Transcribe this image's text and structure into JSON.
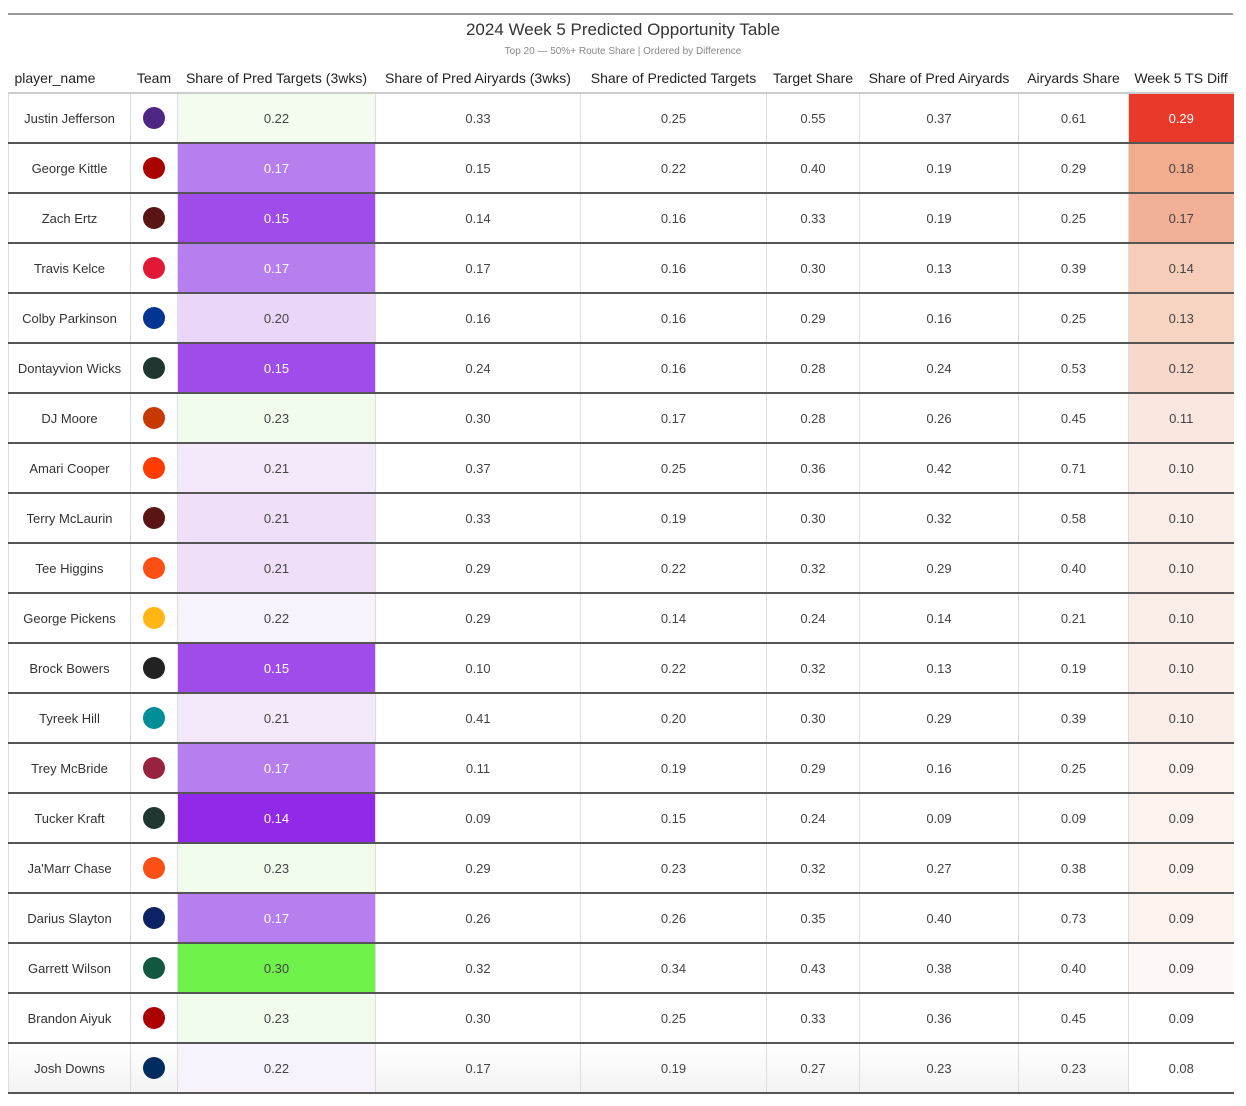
{
  "title": "2024 Week 5 Predicted Opportunity Table",
  "subtitle": "Top 20 — 50%+ Route Share | Ordered by Difference",
  "chart_data": {
    "type": "table",
    "columns": [
      "player_name",
      "Team",
      "Share of Pred Targets (3wks)",
      "Share of Pred Airyards (3wks)",
      "Share of Predicted Targets",
      "Target Share",
      "Share of Pred Airyards",
      "Airyards Share",
      "Week 5 TS Diff"
    ],
    "rows": [
      {
        "player": "Justin Jefferson",
        "team_icon": "vikings-logo",
        "team_color": "#4f2683",
        "v": [
          "0.22",
          "0.33",
          "0.25",
          "0.55",
          "0.37",
          "0.61",
          "0.29"
        ],
        "c3": "#f3fcef",
        "cd": "#e8392a",
        "d_dark": true
      },
      {
        "player": "George Kittle",
        "team_icon": "49ers-logo",
        "team_color": "#aa0000",
        "v": [
          "0.17",
          "0.15",
          "0.22",
          "0.40",
          "0.19",
          "0.29",
          "0.18"
        ],
        "c3": "#b77ef0",
        "cd": "#f1ad8e",
        "c3_dark": true
      },
      {
        "player": "Zach Ertz",
        "team_icon": "commanders-logo",
        "team_color": "#5a1414",
        "v": [
          "0.15",
          "0.14",
          "0.16",
          "0.33",
          "0.19",
          "0.25",
          "0.17"
        ],
        "c3": "#a04ceb",
        "cd": "#f2b096",
        "c3_dark": true
      },
      {
        "player": "Travis Kelce",
        "team_icon": "chiefs-logo",
        "team_color": "#e31837",
        "v": [
          "0.17",
          "0.17",
          "0.16",
          "0.30",
          "0.13",
          "0.39",
          "0.14"
        ],
        "c3": "#b77ef0",
        "cd": "#f6cdb9",
        "c3_dark": true
      },
      {
        "player": "Colby Parkinson",
        "team_icon": "rams-logo",
        "team_color": "#003594",
        "v": [
          "0.20",
          "0.16",
          "0.16",
          "0.29",
          "0.16",
          "0.25",
          "0.13"
        ],
        "c3": "#ead6f8",
        "cd": "#f7d3c2"
      },
      {
        "player": "Dontayvion Wicks",
        "team_icon": "packers-logo",
        "team_color": "#203731",
        "v": [
          "0.15",
          "0.24",
          "0.16",
          "0.28",
          "0.24",
          "0.53",
          "0.12"
        ],
        "c3": "#a04ceb",
        "cd": "#f8d8ca",
        "c3_dark": true
      },
      {
        "player": "DJ Moore",
        "team_icon": "bears-logo",
        "team_color": "#c83803",
        "v": [
          "0.23",
          "0.30",
          "0.17",
          "0.28",
          "0.26",
          "0.45",
          "0.11"
        ],
        "c3": "#f2fced",
        "cd": "#fae7df"
      },
      {
        "player": "Amari Cooper",
        "team_icon": "browns-logo",
        "team_color": "#ff3c00",
        "v": [
          "0.21",
          "0.37",
          "0.25",
          "0.36",
          "0.42",
          "0.71",
          "0.10"
        ],
        "c3": "#f4e8fb",
        "cd": "#fbeee8"
      },
      {
        "player": "Terry McLaurin",
        "team_icon": "commanders-logo",
        "team_color": "#5a1414",
        "v": [
          "0.21",
          "0.33",
          "0.19",
          "0.30",
          "0.32",
          "0.58",
          "0.10"
        ],
        "c3": "#efdff9",
        "cd": "#fbeee8"
      },
      {
        "player": "Tee Higgins",
        "team_icon": "bengals-logo",
        "team_color": "#fb4f14",
        "v": [
          "0.21",
          "0.29",
          "0.22",
          "0.32",
          "0.29",
          "0.40",
          "0.10"
        ],
        "c3": "#efdff9",
        "cd": "#fbeee8"
      },
      {
        "player": "George Pickens",
        "team_icon": "steelers-logo",
        "team_color": "#ffb612",
        "v": [
          "0.22",
          "0.29",
          "0.14",
          "0.24",
          "0.14",
          "0.21",
          "0.10"
        ],
        "c3": "#f8f2fc",
        "cd": "#fbeee8"
      },
      {
        "player": "Brock Bowers",
        "team_icon": "raiders-logo",
        "team_color": "#222222",
        "v": [
          "0.15",
          "0.10",
          "0.22",
          "0.32",
          "0.13",
          "0.19",
          "0.10"
        ],
        "c3": "#a04ceb",
        "cd": "#fbeee8",
        "c3_dark": true
      },
      {
        "player": "Tyreek Hill",
        "team_icon": "dolphins-logo",
        "team_color": "#008e97",
        "v": [
          "0.21",
          "0.41",
          "0.20",
          "0.30",
          "0.29",
          "0.39",
          "0.10"
        ],
        "c3": "#f4e8fb",
        "cd": "#fbeee8"
      },
      {
        "player": "Trey McBride",
        "team_icon": "cardinals-logo",
        "team_color": "#97233f",
        "v": [
          "0.17",
          "0.11",
          "0.19",
          "0.29",
          "0.16",
          "0.25",
          "0.09"
        ],
        "c3": "#b77ef0",
        "cd": "#fcf3ef",
        "c3_dark": true
      },
      {
        "player": "Tucker Kraft",
        "team_icon": "packers-logo",
        "team_color": "#203731",
        "v": [
          "0.14",
          "0.09",
          "0.15",
          "0.24",
          "0.09",
          "0.09",
          "0.09"
        ],
        "c3": "#9229e8",
        "cd": "#fcf3ef",
        "c3_dark": true
      },
      {
        "player": "Ja'Marr Chase",
        "team_icon": "bengals-logo",
        "team_color": "#fb4f14",
        "v": [
          "0.23",
          "0.29",
          "0.23",
          "0.32",
          "0.27",
          "0.38",
          "0.09"
        ],
        "c3": "#f2fced",
        "cd": "#fcf3ef"
      },
      {
        "player": "Darius Slayton",
        "team_icon": "giants-logo",
        "team_color": "#0b2265",
        "v": [
          "0.17",
          "0.26",
          "0.26",
          "0.35",
          "0.40",
          "0.73",
          "0.09"
        ],
        "c3": "#b77ef0",
        "cd": "#fcf3ef",
        "c3_dark": true
      },
      {
        "player": "Garrett Wilson",
        "team_icon": "jets-logo",
        "team_color": "#125740",
        "v": [
          "0.30",
          "0.32",
          "0.34",
          "0.43",
          "0.38",
          "0.40",
          "0.09"
        ],
        "c3": "#6ff24a",
        "cd": "#fdf7f5"
      },
      {
        "player": "Brandon Aiyuk",
        "team_icon": "49ers-logo",
        "team_color": "#aa0000",
        "v": [
          "0.23",
          "0.30",
          "0.25",
          "0.33",
          "0.36",
          "0.45",
          "0.09"
        ],
        "c3": "#f2fced",
        "cd": "#ffffff"
      },
      {
        "player": "Josh Downs",
        "team_icon": "colts-logo",
        "team_color": "#002c5f",
        "v": [
          "0.22",
          "0.17",
          "0.19",
          "0.27",
          "0.23",
          "0.23",
          "0.08"
        ],
        "c3": "#f8f2fc",
        "cd": "#ffffff"
      }
    ]
  }
}
